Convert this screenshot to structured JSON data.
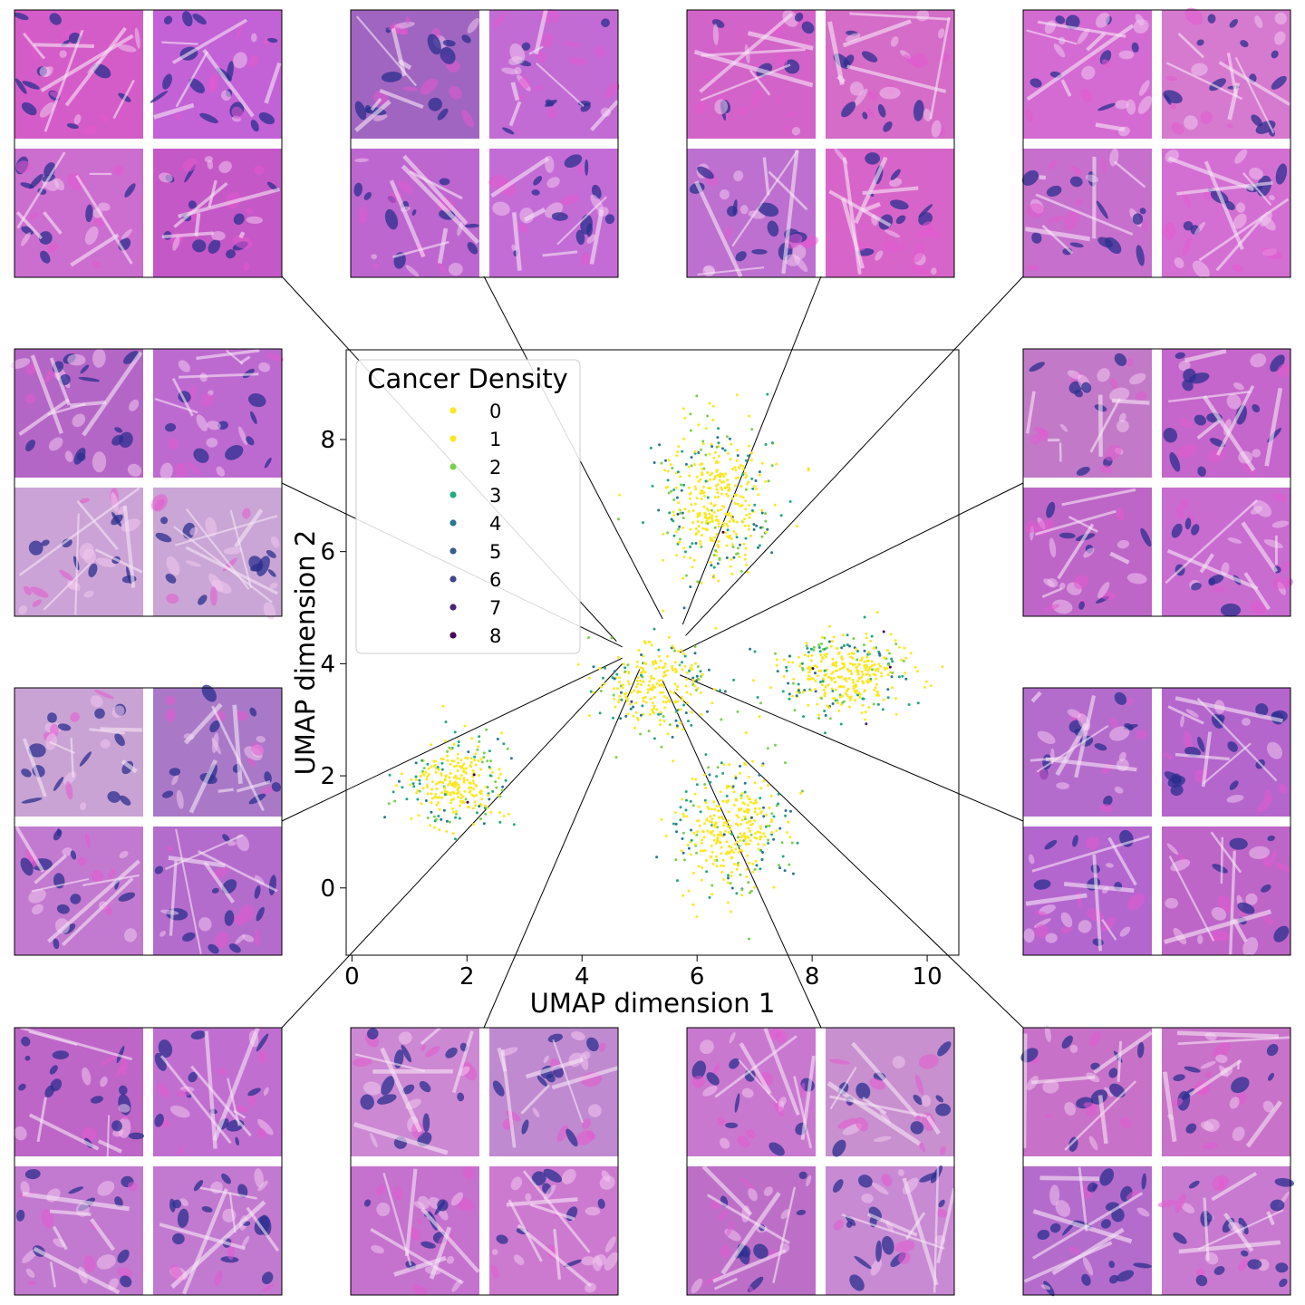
{
  "chart_data": {
    "type": "scatter",
    "title": "",
    "xlabel": "UMAP dimension 1",
    "ylabel": "UMAP dimension 2",
    "xlim": [
      -0.1,
      10.55
    ],
    "ylim": [
      -1.2,
      9.6
    ],
    "xticks": [
      0,
      2,
      4,
      6,
      8,
      10
    ],
    "xtick_labels": [
      "0",
      "2",
      "4",
      "6",
      "8",
      "10"
    ],
    "yticks": [
      0,
      2,
      4,
      6,
      8
    ],
    "ytick_labels": [
      "0",
      "2",
      "4",
      "6",
      "8"
    ],
    "grid": false,
    "legend": {
      "title": "Cancer Density",
      "placement": "top-left",
      "entries": [
        "0",
        "1",
        "2",
        "3",
        "4",
        "5",
        "6",
        "7",
        "8"
      ]
    },
    "colors": [
      "#fde725",
      "#fde725",
      "#7ad151",
      "#22a884",
      "#2a788e",
      "#355f8d",
      "#414487",
      "#482576",
      "#440154"
    ],
    "note_approximate": "point cloud approximated as lobed clusters",
    "clusters": [
      {
        "label": "upper lobe",
        "center": [
          6.4,
          6.9
        ],
        "spread": [
          0.95,
          1.25
        ],
        "n": 420,
        "edge_density": [
          3,
          4
        ]
      },
      {
        "label": "right lobe",
        "center": [
          8.6,
          3.8
        ],
        "spread": [
          1.05,
          0.65
        ],
        "n": 380,
        "edge_density": [
          3,
          4
        ]
      },
      {
        "label": "lower lobe",
        "center": [
          6.6,
          1.0
        ],
        "spread": [
          0.85,
          1.1
        ],
        "n": 380,
        "edge_density": [
          3,
          4
        ]
      },
      {
        "label": "left lobe",
        "center": [
          1.8,
          1.9
        ],
        "spread": [
          0.85,
          0.75
        ],
        "n": 300,
        "edge_density": [
          3,
          4
        ]
      },
      {
        "label": "center",
        "center": [
          5.3,
          3.6
        ],
        "spread": [
          0.9,
          0.7
        ],
        "n": 260,
        "edge_density": [
          2,
          3
        ]
      }
    ],
    "line_ends": [
      [
        4.6,
        4.4
      ],
      [
        5.4,
        4.8
      ],
      [
        5.75,
        4.7
      ],
      [
        5.8,
        4.5
      ],
      [
        4.7,
        4.3
      ],
      [
        5.7,
        4.2
      ],
      [
        4.7,
        4.1
      ],
      [
        5.7,
        3.8
      ],
      [
        4.7,
        4.0
      ],
      [
        5.0,
        3.9
      ],
      [
        5.4,
        3.7
      ],
      [
        5.6,
        3.5
      ]
    ],
    "insets": [
      {
        "grid": [
          0,
          0
        ],
        "colors": [
          "#d45cc8",
          "#c262d6",
          "#cc6ed0",
          "#c458c6"
        ]
      },
      {
        "grid": [
          1,
          0
        ],
        "colors": [
          "#a065c0",
          "#c26bd4",
          "#bd66cf",
          "#c46cd6"
        ]
      },
      {
        "grid": [
          2,
          0
        ],
        "colors": [
          "#d263c8",
          "#d46cc8",
          "#bd70cf",
          "#d765c9"
        ]
      },
      {
        "grid": [
          3,
          0
        ],
        "colors": [
          "#d36bd3",
          "#d67ad0",
          "#c66fcd",
          "#d36fd3"
        ]
      },
      {
        "grid": [
          0,
          1
        ],
        "colors": [
          "#b466c6",
          "#bd6ad0",
          "#cca3d6",
          "#c9a6d6"
        ]
      },
      {
        "grid": [
          3,
          1
        ],
        "colors": [
          "#c27ac8",
          "#c466cb",
          "#bd66c8",
          "#c86cd0"
        ]
      },
      {
        "grid": [
          0,
          2
        ],
        "colors": [
          "#c9a3d4",
          "#a979c8",
          "#c27ad0",
          "#b46ccc"
        ]
      },
      {
        "grid": [
          3,
          2
        ],
        "colors": [
          "#b46ccc",
          "#b466cc",
          "#b466cf",
          "#bd66c8"
        ]
      },
      {
        "grid": [
          0,
          3
        ],
        "colors": [
          "#bd66c8",
          "#c06fd0",
          "#c27ad0",
          "#c27ad0"
        ]
      },
      {
        "grid": [
          1,
          3
        ],
        "colors": [
          "#cc88d3",
          "#c08ad0",
          "#c472ce",
          "#cc7ad0"
        ]
      },
      {
        "grid": [
          2,
          3
        ],
        "colors": [
          "#c978cf",
          "#c890cf",
          "#bd6fc8",
          "#c88ad3"
        ]
      },
      {
        "grid": [
          3,
          3
        ],
        "colors": [
          "#c772c8",
          "#c872c9",
          "#b46ccc",
          "#c77ad0"
        ]
      }
    ]
  }
}
